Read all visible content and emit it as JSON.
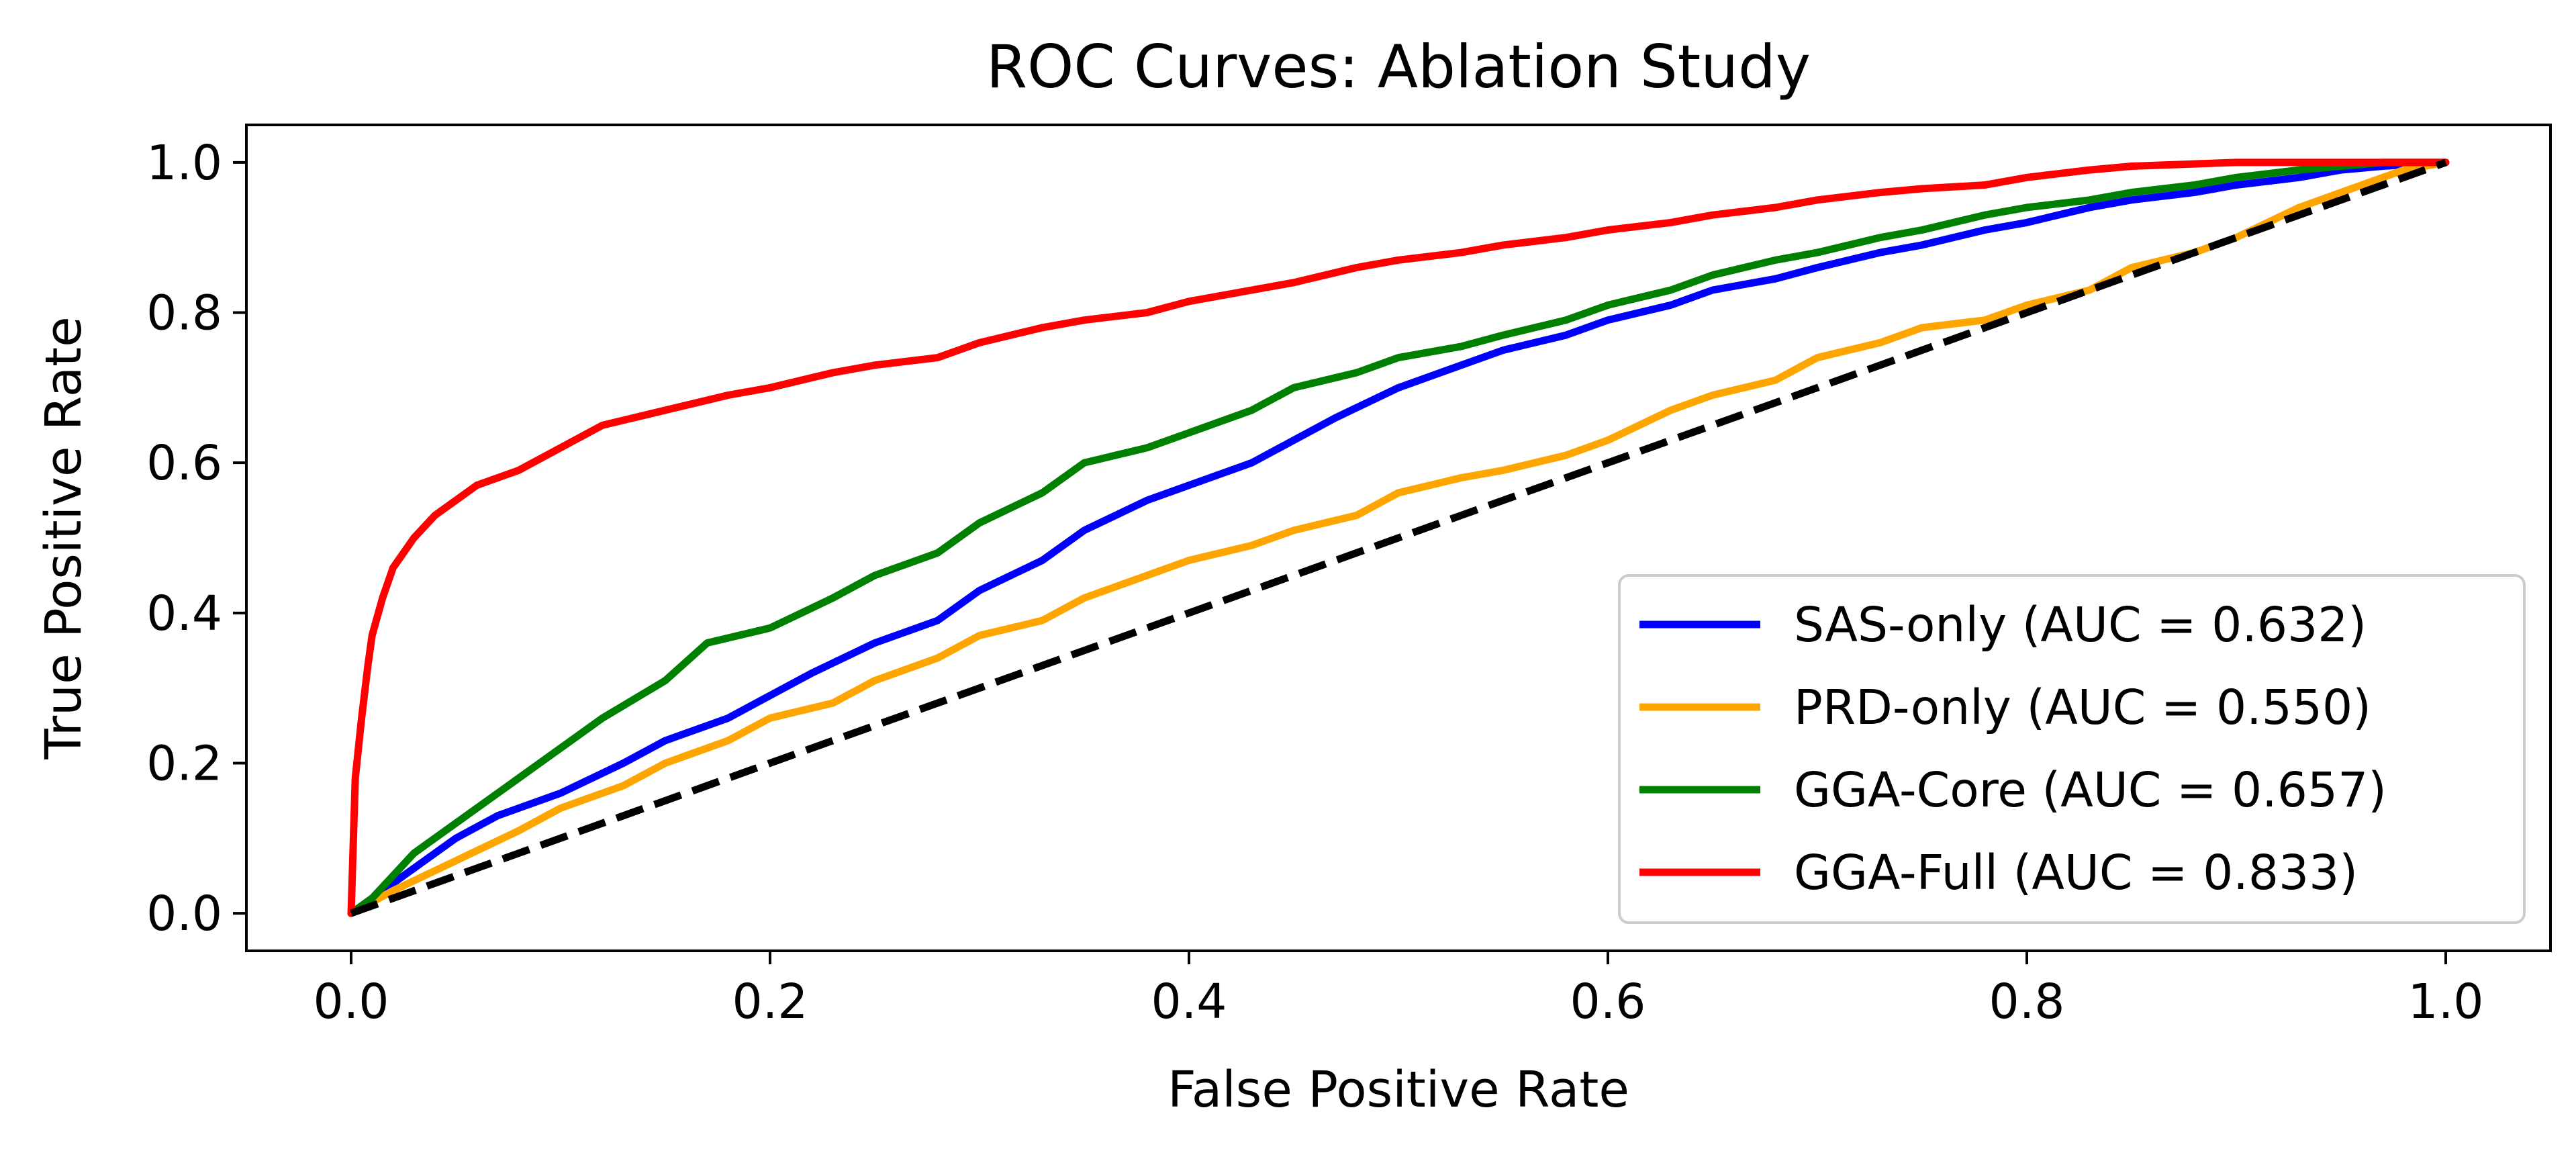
{
  "chart_data": {
    "type": "line",
    "title": "ROC Curves: Ablation Study",
    "xlabel": "False Positive Rate",
    "ylabel": "True Positive Rate",
    "xlim": [
      -0.05,
      1.05
    ],
    "ylim": [
      -0.05,
      1.05
    ],
    "xticks": [
      "0.0",
      "0.2",
      "0.4",
      "0.6",
      "0.8",
      "1.0"
    ],
    "yticks": [
      "0.0",
      "0.2",
      "0.4",
      "0.6",
      "0.8",
      "1.0"
    ],
    "grid": false,
    "legend_position": "lower right",
    "series": [
      {
        "name": "SAS-only (AUC = 0.632)",
        "color": "#0000ff",
        "x": [
          0.0,
          0.01,
          0.02,
          0.03,
          0.05,
          0.07,
          0.1,
          0.13,
          0.15,
          0.18,
          0.2,
          0.22,
          0.25,
          0.28,
          0.3,
          0.33,
          0.35,
          0.38,
          0.4,
          0.43,
          0.45,
          0.47,
          0.5,
          0.53,
          0.55,
          0.58,
          0.6,
          0.63,
          0.65,
          0.68,
          0.7,
          0.73,
          0.75,
          0.78,
          0.8,
          0.83,
          0.85,
          0.88,
          0.9,
          0.93,
          0.95,
          0.97,
          1.0
        ],
        "y": [
          0.0,
          0.02,
          0.04,
          0.06,
          0.1,
          0.13,
          0.16,
          0.2,
          0.23,
          0.26,
          0.29,
          0.32,
          0.36,
          0.39,
          0.43,
          0.47,
          0.51,
          0.55,
          0.57,
          0.6,
          0.63,
          0.66,
          0.7,
          0.73,
          0.75,
          0.77,
          0.79,
          0.81,
          0.83,
          0.845,
          0.86,
          0.88,
          0.89,
          0.91,
          0.92,
          0.94,
          0.95,
          0.96,
          0.97,
          0.98,
          0.99,
          0.995,
          1.0
        ]
      },
      {
        "name": "PRD-only (AUC = 0.550)",
        "color": "#ffa500",
        "x": [
          0.0,
          0.02,
          0.05,
          0.08,
          0.1,
          0.13,
          0.15,
          0.18,
          0.2,
          0.23,
          0.25,
          0.28,
          0.3,
          0.33,
          0.35,
          0.38,
          0.4,
          0.43,
          0.45,
          0.48,
          0.5,
          0.53,
          0.55,
          0.58,
          0.6,
          0.63,
          0.65,
          0.68,
          0.7,
          0.73,
          0.75,
          0.78,
          0.8,
          0.83,
          0.85,
          0.88,
          0.9,
          0.93,
          0.95,
          0.98,
          1.0
        ],
        "y": [
          0.0,
          0.03,
          0.07,
          0.11,
          0.14,
          0.17,
          0.2,
          0.23,
          0.26,
          0.28,
          0.31,
          0.34,
          0.37,
          0.39,
          0.42,
          0.45,
          0.47,
          0.49,
          0.51,
          0.53,
          0.56,
          0.58,
          0.59,
          0.61,
          0.63,
          0.67,
          0.69,
          0.71,
          0.74,
          0.76,
          0.78,
          0.79,
          0.81,
          0.83,
          0.86,
          0.88,
          0.9,
          0.94,
          0.96,
          0.99,
          1.0
        ]
      },
      {
        "name": "GGA-Core (AUC = 0.657)",
        "color": "#008000",
        "x": [
          0.0,
          0.01,
          0.02,
          0.03,
          0.05,
          0.07,
          0.1,
          0.12,
          0.15,
          0.17,
          0.2,
          0.23,
          0.25,
          0.28,
          0.3,
          0.33,
          0.35,
          0.38,
          0.4,
          0.43,
          0.45,
          0.48,
          0.5,
          0.53,
          0.55,
          0.58,
          0.6,
          0.63,
          0.65,
          0.68,
          0.7,
          0.73,
          0.75,
          0.78,
          0.8,
          0.83,
          0.85,
          0.88,
          0.9,
          0.93,
          0.95,
          0.97,
          1.0
        ],
        "y": [
          0.0,
          0.02,
          0.05,
          0.08,
          0.12,
          0.16,
          0.22,
          0.26,
          0.31,
          0.36,
          0.38,
          0.42,
          0.45,
          0.48,
          0.52,
          0.56,
          0.6,
          0.62,
          0.64,
          0.67,
          0.7,
          0.72,
          0.74,
          0.755,
          0.77,
          0.79,
          0.81,
          0.83,
          0.85,
          0.87,
          0.88,
          0.9,
          0.91,
          0.93,
          0.94,
          0.95,
          0.96,
          0.97,
          0.98,
          0.99,
          0.995,
          1.0,
          1.0
        ]
      },
      {
        "name": "GGA-Full (AUC = 0.833)",
        "color": "#ff0000",
        "x": [
          0.0,
          0.002,
          0.005,
          0.008,
          0.01,
          0.015,
          0.02,
          0.03,
          0.04,
          0.05,
          0.06,
          0.08,
          0.1,
          0.12,
          0.15,
          0.18,
          0.2,
          0.23,
          0.25,
          0.28,
          0.3,
          0.33,
          0.35,
          0.38,
          0.4,
          0.43,
          0.45,
          0.48,
          0.5,
          0.53,
          0.55,
          0.58,
          0.6,
          0.63,
          0.65,
          0.68,
          0.7,
          0.73,
          0.75,
          0.78,
          0.8,
          0.83,
          0.85,
          0.88,
          0.9,
          0.93,
          0.95,
          0.97,
          1.0
        ],
        "y": [
          0.0,
          0.18,
          0.26,
          0.33,
          0.37,
          0.42,
          0.46,
          0.5,
          0.53,
          0.55,
          0.57,
          0.59,
          0.62,
          0.65,
          0.67,
          0.69,
          0.7,
          0.72,
          0.73,
          0.74,
          0.76,
          0.78,
          0.79,
          0.8,
          0.815,
          0.83,
          0.84,
          0.86,
          0.87,
          0.88,
          0.89,
          0.9,
          0.91,
          0.92,
          0.93,
          0.94,
          0.95,
          0.96,
          0.965,
          0.97,
          0.98,
          0.99,
          0.995,
          0.998,
          1.0,
          1.0,
          1.0,
          1.0,
          1.0
        ]
      }
    ],
    "reference_line": {
      "color": "#000000",
      "style": "dashed",
      "x": [
        0.0,
        1.0
      ],
      "y": [
        0.0,
        1.0
      ]
    }
  }
}
